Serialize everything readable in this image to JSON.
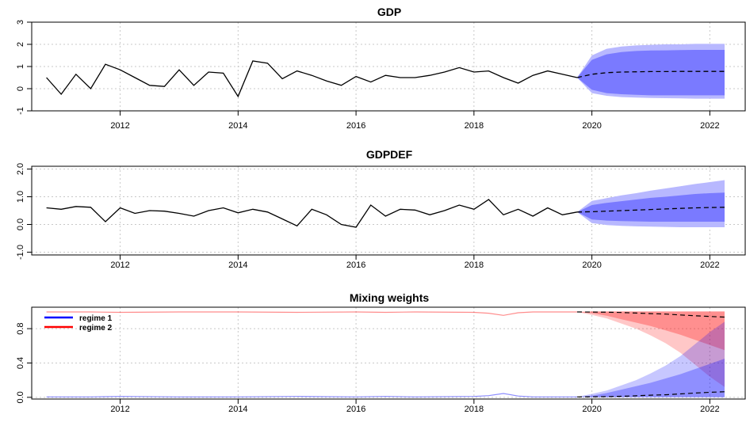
{
  "colors": {
    "history_line": "#000000",
    "forecast_inner": "#7a7aff",
    "forecast_outer": "#b8b8ff",
    "regime1": "#0000ff",
    "regime2": "#ff0000",
    "grid": "#c8c8c8"
  },
  "chart_data": [
    {
      "type": "line",
      "title": "GDP",
      "xlim": [
        2010.5,
        2022.6
      ],
      "ylim": [
        -1,
        3
      ],
      "xticks": [
        2012,
        2014,
        2016,
        2018,
        2020,
        2022
      ],
      "yticks": [
        -1,
        0,
        1,
        2,
        3
      ],
      "ytick_labels": [
        "-1",
        "0",
        "1",
        "2",
        "3"
      ],
      "grid": true,
      "history": {
        "x": [
          2010.75,
          2011.0,
          2011.25,
          2011.5,
          2011.75,
          2012.0,
          2012.25,
          2012.5,
          2012.75,
          2013.0,
          2013.25,
          2013.5,
          2013.75,
          2014.0,
          2014.25,
          2014.5,
          2014.75,
          2015.0,
          2015.25,
          2015.5,
          2015.75,
          2016.0,
          2016.25,
          2016.5,
          2016.75,
          2017.0,
          2017.25,
          2017.5,
          2017.75,
          2018.0,
          2018.25,
          2018.5,
          2018.75,
          2019.0,
          2019.25,
          2019.5,
          2019.75
        ],
        "y": [
          0.5,
          -0.25,
          0.65,
          0.0,
          1.1,
          0.85,
          0.5,
          0.15,
          0.1,
          0.85,
          0.15,
          0.75,
          0.7,
          -0.35,
          1.25,
          1.15,
          0.45,
          0.8,
          0.6,
          0.35,
          0.15,
          0.55,
          0.3,
          0.6,
          0.5,
          0.5,
          0.6,
          0.75,
          0.95,
          0.75,
          0.8,
          0.5,
          0.25,
          0.6,
          0.8,
          0.65,
          0.5
        ]
      },
      "forecast": {
        "x": [
          2019.75,
          2020.0,
          2020.25,
          2020.5,
          2020.75,
          2021.0,
          2021.25,
          2021.5,
          2021.75,
          2022.0,
          2022.25
        ],
        "mean": [
          0.5,
          0.65,
          0.72,
          0.75,
          0.76,
          0.77,
          0.77,
          0.78,
          0.78,
          0.78,
          0.78
        ],
        "inner_lower": [
          0.5,
          -0.05,
          -0.2,
          -0.25,
          -0.28,
          -0.3,
          -0.3,
          -0.3,
          -0.3,
          -0.3,
          -0.3
        ],
        "inner_upper": [
          0.5,
          1.3,
          1.55,
          1.65,
          1.7,
          1.72,
          1.73,
          1.74,
          1.75,
          1.75,
          1.75
        ],
        "outer_lower": [
          0.5,
          -0.2,
          -0.32,
          -0.38,
          -0.4,
          -0.42,
          -0.43,
          -0.44,
          -0.45,
          -0.45,
          -0.45
        ],
        "outer_upper": [
          0.5,
          1.5,
          1.8,
          1.9,
          1.95,
          1.98,
          2.0,
          2.0,
          2.02,
          2.02,
          2.02
        ]
      }
    },
    {
      "type": "line",
      "title": "GDPDEF",
      "xlim": [
        2010.5,
        2022.6
      ],
      "ylim": [
        -1.1,
        2.1
      ],
      "xticks": [
        2012,
        2014,
        2016,
        2018,
        2020,
        2022
      ],
      "yticks": [
        -1,
        0,
        1,
        2
      ],
      "ytick_labels": [
        "-1.0",
        "0.0",
        "1.0",
        "2.0"
      ],
      "grid": true,
      "history": {
        "x": [
          2010.75,
          2011.0,
          2011.25,
          2011.5,
          2011.75,
          2012.0,
          2012.25,
          2012.5,
          2012.75,
          2013.0,
          2013.25,
          2013.5,
          2013.75,
          2014.0,
          2014.25,
          2014.5,
          2014.75,
          2015.0,
          2015.25,
          2015.5,
          2015.75,
          2016.0,
          2016.25,
          2016.5,
          2016.75,
          2017.0,
          2017.25,
          2017.5,
          2017.75,
          2018.0,
          2018.25,
          2018.5,
          2018.75,
          2019.0,
          2019.25,
          2019.5,
          2019.75
        ],
        "y": [
          0.6,
          0.55,
          0.65,
          0.62,
          0.1,
          0.6,
          0.4,
          0.5,
          0.48,
          0.4,
          0.3,
          0.5,
          0.6,
          0.42,
          0.55,
          0.45,
          0.2,
          -0.05,
          0.55,
          0.35,
          0.0,
          -0.1,
          0.7,
          0.3,
          0.55,
          0.52,
          0.35,
          0.5,
          0.7,
          0.55,
          0.9,
          0.35,
          0.55,
          0.3,
          0.6,
          0.35,
          0.45
        ]
      },
      "forecast": {
        "x": [
          2019.75,
          2020.0,
          2020.25,
          2020.5,
          2020.75,
          2021.0,
          2021.25,
          2021.5,
          2021.75,
          2022.0,
          2022.25
        ],
        "mean": [
          0.45,
          0.46,
          0.48,
          0.5,
          0.52,
          0.54,
          0.56,
          0.58,
          0.6,
          0.61,
          0.62
        ],
        "inner_lower": [
          0.45,
          0.18,
          0.14,
          0.12,
          0.11,
          0.1,
          0.1,
          0.1,
          0.1,
          0.1,
          0.1
        ],
        "inner_upper": [
          0.45,
          0.7,
          0.78,
          0.84,
          0.9,
          0.96,
          1.0,
          1.05,
          1.1,
          1.13,
          1.15
        ],
        "outer_lower": [
          0.45,
          0.05,
          -0.02,
          -0.05,
          -0.07,
          -0.08,
          -0.09,
          -0.1,
          -0.1,
          -0.1,
          -0.1
        ],
        "outer_upper": [
          0.45,
          0.85,
          0.95,
          1.05,
          1.13,
          1.22,
          1.3,
          1.38,
          1.46,
          1.53,
          1.6
        ]
      }
    },
    {
      "type": "line",
      "title": "Mixing weights",
      "xlim": [
        2010.5,
        2022.6
      ],
      "ylim": [
        -0.02,
        1.05
      ],
      "xticks": [
        2012,
        2014,
        2016,
        2018,
        2020,
        2022
      ],
      "yticks": [
        0.0,
        0.4,
        0.8
      ],
      "ytick_labels": [
        "0.0",
        "0.4",
        "0.8"
      ],
      "grid": true,
      "legend": {
        "position": "top-left",
        "entries": [
          "regime 1",
          "regime 2"
        ]
      },
      "series": [
        {
          "name": "regime 1",
          "x": [
            2010.75,
            2011.5,
            2012.0,
            2013.0,
            2014.0,
            2015.0,
            2016.0,
            2016.5,
            2017.0,
            2018.0,
            2018.25,
            2018.5,
            2018.75,
            2019.0,
            2019.75
          ],
          "history": [
            0.005,
            0.005,
            0.01,
            0.005,
            0.005,
            0.01,
            0.005,
            0.01,
            0.005,
            0.01,
            0.02,
            0.045,
            0.015,
            0.005,
            0.005
          ],
          "forecast_x": [
            2019.75,
            2020.0,
            2020.25,
            2020.5,
            2020.75,
            2021.0,
            2021.25,
            2021.5,
            2021.75,
            2022.0,
            2022.25
          ],
          "forecast_mean": [
            0.005,
            0.006,
            0.008,
            0.012,
            0.018,
            0.025,
            0.03,
            0.04,
            0.05,
            0.058,
            0.065
          ],
          "inner_lower": [
            0.005,
            0.0,
            0.0,
            0.0,
            0.0,
            0.0,
            0.0,
            0.0,
            0.0,
            0.0,
            0.0
          ],
          "inner_upper": [
            0.005,
            0.02,
            0.05,
            0.09,
            0.13,
            0.17,
            0.22,
            0.27,
            0.33,
            0.39,
            0.45
          ],
          "outer_lower": [
            0.005,
            0.0,
            0.0,
            0.0,
            0.0,
            0.0,
            0.0,
            0.0,
            0.0,
            0.0,
            0.0
          ],
          "outer_upper": [
            0.005,
            0.04,
            0.08,
            0.14,
            0.2,
            0.28,
            0.37,
            0.48,
            0.62,
            0.76,
            0.88
          ]
        },
        {
          "name": "regime 2",
          "x": [
            2010.75,
            2011.5,
            2012.0,
            2013.0,
            2014.0,
            2015.0,
            2016.0,
            2016.5,
            2017.0,
            2018.0,
            2018.25,
            2018.5,
            2018.75,
            2019.0,
            2019.75
          ],
          "history": [
            0.995,
            0.995,
            0.99,
            0.995,
            0.995,
            0.99,
            0.995,
            0.99,
            0.995,
            0.99,
            0.98,
            0.955,
            0.985,
            0.995,
            0.995
          ],
          "forecast_x": [
            2019.75,
            2020.0,
            2020.25,
            2020.5,
            2020.75,
            2021.0,
            2021.25,
            2021.5,
            2021.75,
            2022.0,
            2022.25
          ],
          "forecast_mean": [
            0.995,
            0.994,
            0.992,
            0.988,
            0.982,
            0.975,
            0.97,
            0.96,
            0.95,
            0.942,
            0.935
          ],
          "inner_lower": [
            0.995,
            0.98,
            0.95,
            0.91,
            0.87,
            0.83,
            0.78,
            0.73,
            0.67,
            0.61,
            0.55
          ],
          "inner_upper": [
            0.995,
            1.0,
            1.0,
            1.0,
            1.0,
            1.0,
            1.0,
            1.0,
            1.0,
            1.0,
            1.0
          ],
          "outer_lower": [
            0.995,
            0.96,
            0.92,
            0.86,
            0.8,
            0.72,
            0.63,
            0.52,
            0.38,
            0.24,
            0.12
          ],
          "outer_upper": [
            0.995,
            1.0,
            1.0,
            1.0,
            1.0,
            1.0,
            1.0,
            1.0,
            1.0,
            1.0,
            1.0
          ]
        }
      ]
    }
  ]
}
